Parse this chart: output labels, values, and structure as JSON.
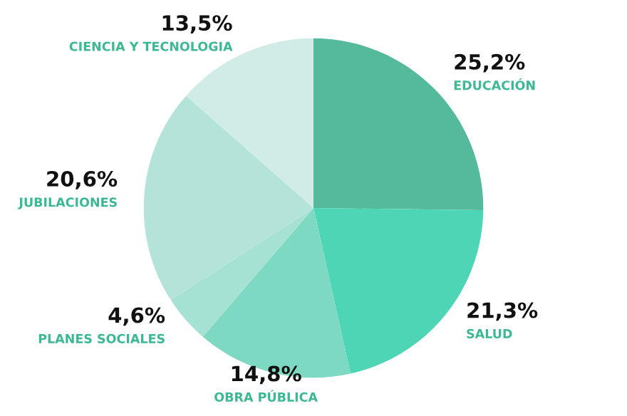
{
  "chart_data": {
    "type": "pie",
    "categories": [
      "EDUCACIÓN",
      "SALUD",
      "OBRA PÚBLICA",
      "PLANES SOCIALES",
      "JUBILACIONES",
      "CIENCIA Y TECNOLOGIA"
    ],
    "values": [
      25.2,
      21.3,
      14.8,
      4.6,
      20.6,
      13.5
    ],
    "value_labels": [
      "25,2%",
      "21,3%",
      "14,8%",
      "4,6%",
      "20,6%",
      "13,5%"
    ],
    "colors": [
      "#55b99b",
      "#4dd5b5",
      "#7dd9c1",
      "#a6e2d3",
      "#b4e4d9",
      "#d1ece7"
    ],
    "legend": false
  }
}
